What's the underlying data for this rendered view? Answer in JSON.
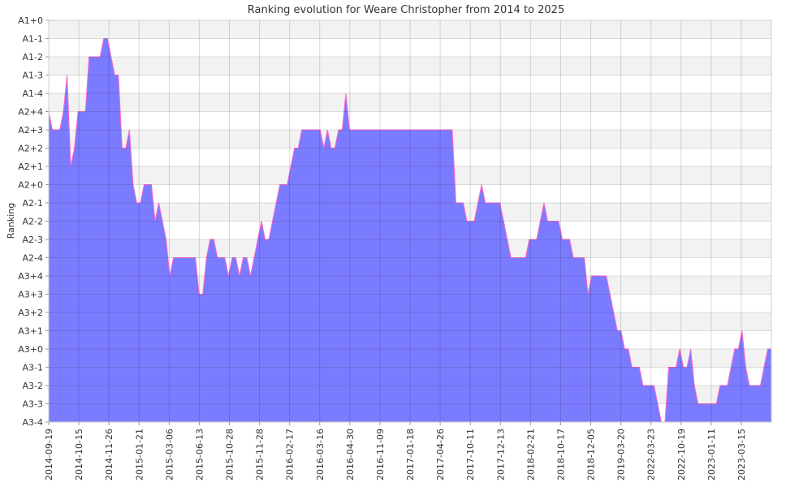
{
  "chart_data": {
    "type": "area",
    "title": "Ranking evolution for Weare Christopher from 2014 to 2025",
    "xlabel": "",
    "ylabel": "Ranking",
    "y_ticks": [
      "A1+0",
      "A1-1",
      "A1-2",
      "A1-3",
      "A1-4",
      "A2+4",
      "A2+3",
      "A2+2",
      "A2+1",
      "A2+0",
      "A2-1",
      "A2-2",
      "A2-3",
      "A2-4",
      "A3+4",
      "A3+3",
      "A3+2",
      "A3+1",
      "A3+0",
      "A3-1",
      "A3-2",
      "A3-3",
      "A3-4"
    ],
    "x_ticks": [
      "2014-09-19",
      "2014-10-15",
      "2014-11-26",
      "2015-01-21",
      "2015-03-06",
      "2015-06-13",
      "2015-10-28",
      "2015-11-28",
      "2016-02-17",
      "2016-03-16",
      "2016-04-30",
      "2016-11-09",
      "2017-01-18",
      "2017-04-26",
      "2017-10-11",
      "2017-12-13",
      "2018-02-21",
      "2018-10-17",
      "2018-12-05",
      "2019-03-20",
      "2022-03-23",
      "2022-10-19",
      "2023-01-11",
      "2023-03-15"
    ],
    "series": [
      {
        "values": [
          17,
          16,
          16,
          16,
          17,
          19,
          14,
          15,
          17,
          17,
          17,
          20,
          20,
          20,
          20,
          21,
          21,
          20,
          19,
          19,
          15,
          15,
          16,
          13,
          12,
          12,
          13,
          13,
          13,
          11,
          12,
          11,
          10,
          8,
          9,
          9,
          9,
          9,
          9,
          9,
          9,
          7,
          7,
          9,
          10,
          10,
          9,
          9,
          9,
          8,
          9,
          9,
          8,
          9,
          9,
          8,
          9,
          10,
          11,
          10,
          10,
          11,
          12,
          13,
          13,
          13,
          14,
          15,
          15,
          16,
          16,
          16,
          16,
          16,
          16,
          15,
          16,
          15,
          15,
          16,
          16,
          18,
          16,
          16,
          16,
          16,
          16,
          16,
          16,
          16,
          16,
          16,
          16,
          16,
          16,
          16,
          16,
          16,
          16,
          16,
          16,
          16,
          16,
          16,
          16,
          16,
          16,
          16,
          16,
          16,
          16,
          12,
          12,
          12,
          11,
          11,
          11,
          12,
          13,
          12,
          12,
          12,
          12,
          12,
          11,
          10,
          9,
          9,
          9,
          9,
          9,
          10,
          10,
          10,
          11,
          12,
          11,
          11,
          11,
          11,
          10,
          10,
          10,
          9,
          9,
          9,
          9,
          7,
          8,
          8,
          8,
          8,
          8,
          7,
          6,
          5,
          5,
          4,
          4,
          3,
          3,
          3,
          2,
          2,
          2,
          2,
          1,
          0,
          0,
          3,
          3,
          3,
          4,
          3,
          3,
          4,
          2,
          1,
          1,
          1,
          1,
          1,
          1,
          2,
          2,
          2,
          3,
          4,
          4,
          5,
          3,
          2,
          2,
          2,
          2,
          3,
          4,
          4
        ]
      }
    ],
    "colors": {
      "fill": "#7b7bff",
      "line": "#ff66cc",
      "stripe": "#f2f2f2",
      "grid": "#d0d0d0"
    },
    "grid": true
  }
}
